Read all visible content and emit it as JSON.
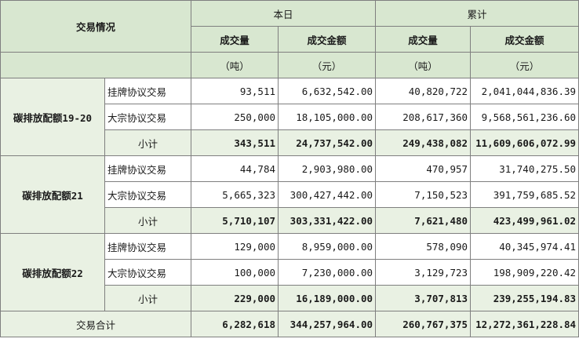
{
  "header": {
    "corner": "交易情况",
    "today": "本日",
    "cumulative": "累计",
    "volume": "成交量",
    "amount": "成交金额",
    "unit_ton": "（吨）",
    "unit_yuan": "（元）"
  },
  "groups": [
    {
      "name": "碳排放配额19-20",
      "rows": [
        {
          "type": "挂牌协议交易",
          "day_volume": "93,511",
          "day_amount": "6,632,542.00",
          "cum_volume": "40,820,722",
          "cum_amount": "2,041,044,836.39"
        },
        {
          "type": "大宗协议交易",
          "day_volume": "250,000",
          "day_amount": "18,105,000.00",
          "cum_volume": "208,617,360",
          "cum_amount": "9,568,561,236.60"
        }
      ],
      "subtotal": {
        "label": "小计",
        "day_volume": "343,511",
        "day_amount": "24,737,542.00",
        "cum_volume": "249,438,082",
        "cum_amount": "11,609,606,072.99"
      }
    },
    {
      "name": "碳排放配额21",
      "rows": [
        {
          "type": "挂牌协议交易",
          "day_volume": "44,784",
          "day_amount": "2,903,980.00",
          "cum_volume": "470,957",
          "cum_amount": "31,740,275.50"
        },
        {
          "type": "大宗协议交易",
          "day_volume": "5,665,323",
          "day_amount": "300,427,442.00",
          "cum_volume": "7,150,523",
          "cum_amount": "391,759,685.52"
        }
      ],
      "subtotal": {
        "label": "小计",
        "day_volume": "5,710,107",
        "day_amount": "303,331,422.00",
        "cum_volume": "7,621,480",
        "cum_amount": "423,499,961.02"
      }
    },
    {
      "name": "碳排放配额22",
      "rows": [
        {
          "type": "挂牌协议交易",
          "day_volume": "129,000",
          "day_amount": "8,959,000.00",
          "cum_volume": "578,090",
          "cum_amount": "40,345,974.41"
        },
        {
          "type": "大宗协议交易",
          "day_volume": "100,000",
          "day_amount": "7,230,000.00",
          "cum_volume": "3,129,723",
          "cum_amount": "198,909,220.42"
        }
      ],
      "subtotal": {
        "label": "小计",
        "day_volume": "229,000",
        "day_amount": "16,189,000.00",
        "cum_volume": "3,707,813",
        "cum_amount": "239,255,194.83"
      }
    }
  ],
  "total": {
    "label": "交易合计",
    "day_volume": "6,282,618",
    "day_amount": "344,257,964.00",
    "cum_volume": "260,767,375",
    "cum_amount": "12,272,361,228.84"
  },
  "colors": {
    "header_bg": "#d8e7d0",
    "light_bg": "#e9f1e3",
    "border": "#7f7f7f"
  }
}
